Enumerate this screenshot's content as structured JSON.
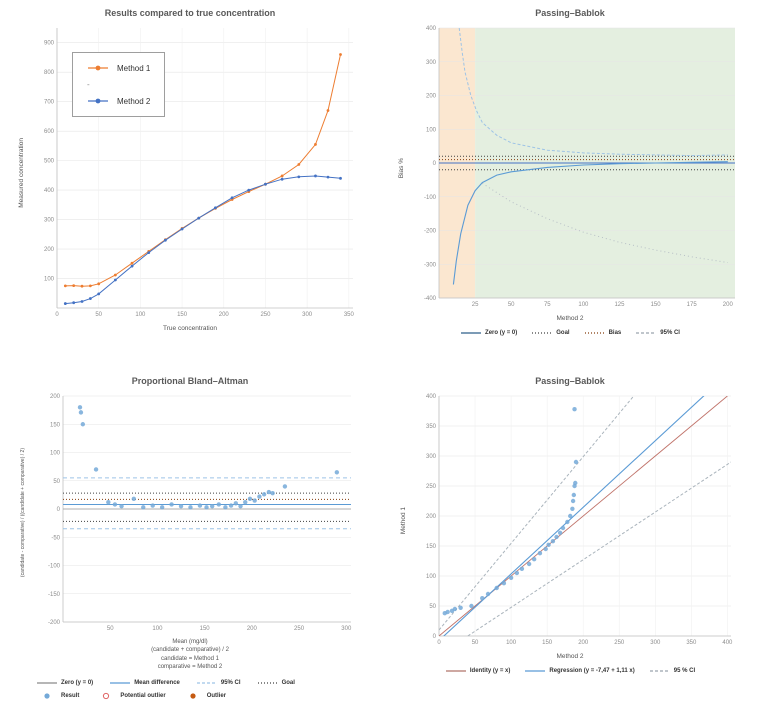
{
  "chart_data": [
    {
      "id": "results",
      "type": "line",
      "title": "Results compared to true concentration",
      "xlabel": "True concentration",
      "ylabel": "Measured concentration",
      "xlim": [
        0,
        355
      ],
      "ylim": [
        0,
        950
      ],
      "xticks": [
        0,
        50,
        100,
        150,
        200,
        250,
        300,
        350
      ],
      "yticks": [
        100,
        200,
        300,
        400,
        500,
        600,
        700,
        800,
        900
      ],
      "xgrid": true,
      "margins": {
        "l": 28,
        "r": 10,
        "t": 6,
        "b": 16
      },
      "legend": [
        {
          "label": "Method 1",
          "type": "line-dot",
          "color": "#ed7d31"
        },
        {
          "label": "-",
          "type": "text",
          "color": "#888888"
        },
        {
          "label": "Method 2",
          "type": "line-dot",
          "color": "#4472c4"
        }
      ],
      "series": [
        {
          "name": "Method 1",
          "type": "line",
          "color": "#ed7d31",
          "width": 1,
          "markers": true,
          "x": [
            10,
            20,
            30,
            40,
            50,
            70,
            90,
            110,
            130,
            150,
            170,
            190,
            210,
            230,
            250,
            270,
            290,
            310,
            325,
            340
          ],
          "y": [
            75,
            76,
            74,
            75,
            82,
            112,
            152,
            192,
            232,
            270,
            305,
            338,
            368,
            395,
            420,
            448,
            487,
            555,
            670,
            860
          ]
        },
        {
          "name": "Method 2",
          "type": "line",
          "color": "#4472c4",
          "width": 1,
          "markers": true,
          "x": [
            10,
            20,
            30,
            40,
            50,
            70,
            90,
            110,
            130,
            150,
            170,
            190,
            210,
            230,
            250,
            270,
            290,
            310,
            325,
            340
          ],
          "y": [
            15,
            18,
            22,
            32,
            48,
            95,
            142,
            188,
            230,
            268,
            305,
            340,
            374,
            400,
            420,
            437,
            445,
            448,
            444,
            440
          ]
        }
      ]
    },
    {
      "id": "bias",
      "type": "line",
      "title": "Passing–Bablok",
      "xlabel": "Method 2",
      "ylabel": "Bias %",
      "xlim": [
        0,
        205
      ],
      "ylim": [
        -400,
        400
      ],
      "xticks": [
        25,
        50,
        75,
        100,
        125,
        150,
        175,
        200
      ],
      "yticks": [
        -400,
        -300,
        -200,
        -100,
        0,
        100,
        200,
        300,
        400
      ],
      "margins": {
        "l": 30,
        "r": 8,
        "t": 6,
        "b": 16
      },
      "bands": [
        {
          "name": "low-range-band",
          "from": 0,
          "to": 25,
          "color": "#fbe7d0"
        },
        {
          "name": "valid-range-band",
          "from": 25,
          "to": 205,
          "color": "#e4efe0"
        }
      ],
      "refLines": [
        {
          "name": "zero-line",
          "y": 0,
          "color": "#4472c4",
          "width": 0.9
        },
        {
          "name": "goal-upper",
          "y": 20,
          "color": "#404040",
          "dash": "1,2",
          "width": 1
        },
        {
          "name": "goal-lower",
          "y": -20,
          "color": "#404040",
          "dash": "1,2",
          "width": 1
        },
        {
          "name": "bias-level",
          "y": 10,
          "color": "#843c0c",
          "dash": "1,2",
          "width": 1
        }
      ],
      "series": [
        {
          "name": "Bias curve",
          "type": "line",
          "color": "#5b9bd5",
          "width": 1.1,
          "x": [
            10,
            12,
            15,
            20,
            25,
            30,
            40,
            50,
            75,
            100,
            125,
            150,
            175,
            200
          ],
          "y": [
            -360,
            -290,
            -210,
            -125,
            -82,
            -58,
            -36,
            -26,
            -13,
            -6,
            -2,
            0,
            2,
            4
          ]
        },
        {
          "name": "Upper 95% CI",
          "type": "line",
          "color": "#9dc3e6",
          "dash": "3,2",
          "width": 1,
          "x": [
            14,
            16,
            18,
            22,
            26,
            30,
            40,
            50,
            75,
            100,
            125,
            150,
            175,
            200
          ],
          "y": [
            400,
            330,
            270,
            200,
            155,
            120,
            82,
            60,
            38,
            30,
            26,
            24,
            22,
            24
          ]
        },
        {
          "name": "Lower 95% CI",
          "type": "line",
          "color": "#b7bfc6",
          "dash": "1,3",
          "width": 1,
          "x": [
            30,
            50,
            75,
            100,
            125,
            150,
            175,
            200
          ],
          "y": [
            -60,
            -115,
            -165,
            -205,
            -235,
            -258,
            -278,
            -295
          ]
        }
      ],
      "legend": [
        {
          "label": "Zero (y = 0)",
          "type": "line",
          "color": "#2e5f8a"
        },
        {
          "label": "Goal",
          "type": "line",
          "color": "#404040",
          "dash": "1,2"
        },
        {
          "label": "Bias",
          "type": "line",
          "color": "#843c0c",
          "dash": "1,2"
        },
        {
          "label": "95% CI",
          "type": "line",
          "color": "#9aa5ad",
          "dash": "3,2"
        }
      ]
    },
    {
      "id": "bland_altman",
      "type": "scatter",
      "title": "Proportional Bland–Altman",
      "ylabel": "(candidate - comparative) / ((candidate + comparative) / 2)",
      "xlabel_lines": [
        "Mean (mg/dl)",
        "(candidate + comparative) / 2",
        "candidate = Method 1",
        "comparative = Method 2"
      ],
      "xlim": [
        0,
        305
      ],
      "ylim": [
        -200,
        200
      ],
      "xticks": [
        50,
        100,
        150,
        200,
        250,
        300
      ],
      "yticks": [
        -200,
        -150,
        -100,
        -50,
        0,
        50,
        100,
        150,
        200
      ],
      "margins": {
        "l": 32,
        "r": 10,
        "t": 6,
        "b": 14
      },
      "refLines": [
        {
          "name": "zero-line",
          "y": 0,
          "color": "#999999",
          "width": 0.8
        },
        {
          "name": "mean-difference",
          "y": 8,
          "color": "#5b9bd5",
          "width": 1
        },
        {
          "name": "ci-upper",
          "y": 55,
          "color": "#9dc3e6",
          "dash": "4,3",
          "width": 1
        },
        {
          "name": "ci-lower",
          "y": -35,
          "color": "#9dc3e6",
          "dash": "4,3",
          "width": 1
        },
        {
          "name": "goal-upper",
          "y": 28,
          "color": "#404040",
          "dash": "1,2",
          "width": 1
        },
        {
          "name": "goal-lower",
          "y": -22,
          "color": "#404040",
          "dash": "1,2",
          "width": 1
        },
        {
          "name": "bias-level",
          "y": 17,
          "color": "#843c0c",
          "dash": "1,2",
          "width": 1
        }
      ],
      "series": [
        {
          "name": "Result",
          "type": "scatter",
          "color": "#74a9d8",
          "r": 2.2,
          "opacity": 0.85,
          "x": [
            18,
            19,
            21,
            35,
            48,
            55,
            62,
            75,
            85,
            95,
            105,
            115,
            125,
            135,
            145,
            152,
            158,
            165,
            172,
            178,
            183,
            188,
            193,
            198,
            203,
            208,
            213,
            218,
            222,
            235,
            290
          ],
          "y": [
            180,
            171,
            150,
            70,
            12,
            8,
            5,
            18,
            3,
            6,
            3,
            8,
            5,
            3,
            6,
            3,
            5,
            8,
            3,
            6,
            10,
            5,
            12,
            18,
            15,
            22,
            26,
            30,
            28,
            40,
            65
          ]
        }
      ],
      "legend_rows": [
        [
          {
            "label": "Zero (y = 0)",
            "type": "line",
            "color": "#8a8a8a"
          },
          {
            "label": "Mean difference",
            "type": "line",
            "color": "#5b9bd5"
          },
          {
            "label": "95% CI",
            "type": "line",
            "color": "#9dc3e6",
            "dash": "3,2"
          },
          {
            "label": "Goal",
            "type": "line",
            "color": "#404040",
            "dash": "1,2"
          }
        ],
        [
          {
            "label": "Result",
            "type": "dot",
            "color": "#74a9d8"
          },
          {
            "label": "Potential outlier",
            "type": "ring",
            "color": "#e06666"
          },
          {
            "label": "Outlier",
            "type": "dot",
            "color": "#c55a11"
          }
        ]
      ]
    },
    {
      "id": "regression",
      "type": "scatter",
      "title": "Passing–Bablok",
      "xlabel": "Method 2",
      "ylabel": "Method 1",
      "regression_equation": "y = -7,47 + 1,11 x",
      "xlim": [
        0,
        405
      ],
      "ylim": [
        0,
        400
      ],
      "xticks": [
        0,
        50,
        100,
        150,
        200,
        250,
        300,
        350,
        400
      ],
      "yticks": [
        0,
        50,
        100,
        150,
        200,
        250,
        300,
        350,
        400
      ],
      "xgrid": true,
      "margins": {
        "l": 28,
        "r": 10,
        "t": 6,
        "b": 16
      },
      "series": [
        {
          "name": "Upper 95% CI",
          "type": "line",
          "color": "#aab4bc",
          "dash": "3,2",
          "width": 1,
          "x": [
            0,
            270
          ],
          "y": [
            10,
            400
          ]
        },
        {
          "name": "Lower 95% CI",
          "type": "line",
          "color": "#aab4bc",
          "dash": "3,2",
          "width": 1,
          "x": [
            40,
            405
          ],
          "y": [
            0,
            290
          ]
        },
        {
          "name": "Identity",
          "type": "line",
          "color": "#c0736a",
          "width": 0.9,
          "x": [
            0,
            400
          ],
          "y": [
            0,
            400
          ]
        },
        {
          "name": "Regression",
          "type": "line",
          "color": "#5b9bd5",
          "width": 1.1,
          "x": [
            0,
            400
          ],
          "y": [
            -7.47,
            436.53
          ]
        },
        {
          "name": "Result",
          "type": "scatter",
          "color": "#74a9d8",
          "r": 2.2,
          "opacity": 0.85,
          "x": [
            8,
            12,
            18,
            22,
            30,
            45,
            60,
            68,
            80,
            90,
            100,
            108,
            115,
            125,
            132,
            140,
            148,
            152,
            158,
            163,
            168,
            172,
            178,
            182,
            185,
            186,
            187,
            188,
            189,
            190,
            188
          ],
          "y": [
            38,
            40,
            42,
            45,
            47,
            50,
            63,
            70,
            80,
            88,
            97,
            105,
            112,
            120,
            128,
            138,
            145,
            152,
            158,
            165,
            172,
            180,
            190,
            200,
            212,
            225,
            235,
            250,
            255,
            290,
            378
          ]
        }
      ],
      "legend": [
        {
          "label": "Identity (y = x)",
          "type": "line",
          "color": "#b0736b"
        },
        {
          "label": "Regression (y = -7,47 + 1,11 x)",
          "type": "line",
          "color": "#5b9bd5"
        },
        {
          "label": "95 % CI",
          "type": "line",
          "color": "#9aa5ad",
          "dash": "3,2"
        }
      ]
    }
  ]
}
